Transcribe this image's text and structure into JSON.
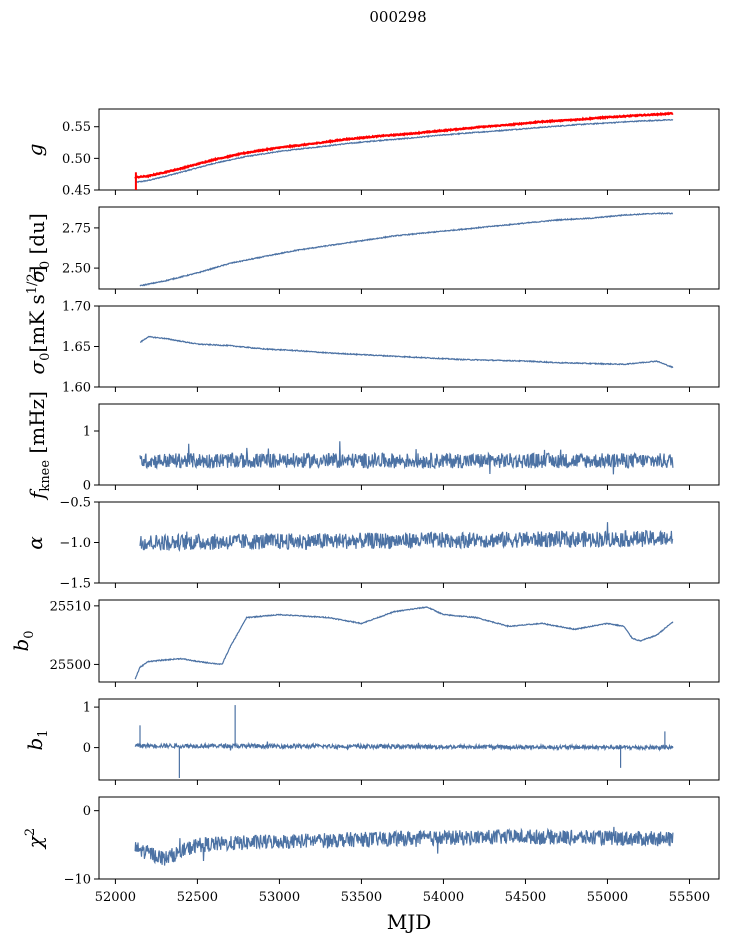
{
  "title": "000298",
  "xlabel": "MJD",
  "xlim": [
    51900,
    55680
  ],
  "xticks": [
    52000,
    52500,
    53000,
    53500,
    54000,
    54500,
    55000,
    55500
  ],
  "colors": {
    "series": "#4c72a4",
    "red": "#ff0000"
  },
  "chart_data": [
    {
      "type": "line",
      "key": "g",
      "ylabel": "g",
      "ylim": [
        0.45,
        0.578
      ],
      "yticks": [
        0.45,
        0.5,
        0.55
      ],
      "ytick_labels": [
        "0.45",
        "0.50",
        "0.55"
      ],
      "x": [
        52120,
        52200,
        52400,
        52600,
        52800,
        53000,
        53200,
        53400,
        53600,
        53800,
        54000,
        54200,
        54400,
        54600,
        54800,
        55000,
        55200,
        55400
      ],
      "series": [
        {
          "values": [
            0.462,
            0.465,
            0.478,
            0.492,
            0.503,
            0.511,
            0.517,
            0.523,
            0.528,
            0.532,
            0.537,
            0.541,
            0.545,
            0.549,
            0.553,
            0.556,
            0.559,
            0.561
          ]
        },
        {
          "values": [
            0.47,
            0.472,
            0.484,
            0.498,
            0.509,
            0.517,
            0.523,
            0.53,
            0.535,
            0.539,
            0.544,
            0.549,
            0.553,
            0.558,
            0.561,
            0.565,
            0.568,
            0.571
          ],
          "color": "red"
        }
      ]
    },
    {
      "type": "line",
      "key": "sigma0_du",
      "ylabel": "σ₀ [du]",
      "ylim": [
        2.37,
        2.88
      ],
      "yticks": [
        2.5,
        2.75
      ],
      "ytick_labels": [
        "2.50",
        "2.75"
      ],
      "x": [
        52150,
        52300,
        52500,
        52700,
        52900,
        53100,
        53300,
        53500,
        53700,
        53900,
        54100,
        54300,
        54500,
        54700,
        54900,
        55100,
        55300,
        55400
      ],
      "series": [
        {
          "values": [
            2.39,
            2.42,
            2.47,
            2.53,
            2.57,
            2.61,
            2.64,
            2.67,
            2.7,
            2.72,
            2.74,
            2.76,
            2.78,
            2.8,
            2.81,
            2.83,
            2.84,
            2.84
          ]
        }
      ]
    },
    {
      "type": "line",
      "key": "sigma0_mk",
      "ylabel": "σ₀[mK s^1/2]",
      "ylim": [
        1.6,
        1.7
      ],
      "yticks": [
        1.6,
        1.65,
        1.7
      ],
      "ytick_labels": [
        "1.60",
        "1.65",
        "1.70"
      ],
      "x": [
        52150,
        52200,
        52300,
        52500,
        52700,
        52900,
        53100,
        53300,
        53500,
        53700,
        53900,
        54100,
        54300,
        54500,
        54700,
        54900,
        55100,
        55300,
        55400
      ],
      "series": [
        {
          "values": [
            1.655,
            1.662,
            1.66,
            1.653,
            1.651,
            1.647,
            1.645,
            1.642,
            1.64,
            1.638,
            1.636,
            1.634,
            1.633,
            1.632,
            1.63,
            1.629,
            1.628,
            1.632,
            1.624
          ]
        }
      ]
    },
    {
      "type": "line",
      "key": "fknee",
      "ylabel": "f_knee [mHz]",
      "ylim": [
        0,
        1.5
      ],
      "yticks": [
        0,
        1
      ],
      "ytick_labels": [
        "0",
        "1"
      ],
      "x": [
        52150,
        55400
      ],
      "series": [
        {
          "values": [
            0.45,
            0.45
          ],
          "noise": 0.14
        }
      ]
    },
    {
      "type": "line",
      "key": "alpha",
      "ylabel": "α",
      "ylim": [
        -1.5,
        -0.5
      ],
      "yticks": [
        -1.5,
        -1.0,
        -0.5
      ],
      "ytick_labels": [
        "−1.5",
        "−1.0",
        "−0.5"
      ],
      "x": [
        52150,
        55400
      ],
      "series": [
        {
          "values": [
            -1.0,
            -0.95
          ],
          "noise": 0.1
        }
      ]
    },
    {
      "type": "line",
      "key": "b0",
      "ylabel": "b₀",
      "ylim": [
        25497,
        25511
      ],
      "yticks": [
        25500,
        25510
      ],
      "ytick_labels": [
        "25500",
        "25510"
      ],
      "x": [
        52120,
        52150,
        52200,
        52400,
        52500,
        52650,
        52700,
        52800,
        53000,
        53300,
        53500,
        53700,
        53900,
        54000,
        54200,
        54400,
        54600,
        54800,
        55000,
        55100,
        55150,
        55200,
        55300,
        55400
      ],
      "series": [
        {
          "values": [
            25497.5,
            25499.5,
            25500.5,
            25501,
            25500.5,
            25500,
            25503,
            25508,
            25508.5,
            25508,
            25507,
            25509,
            25509.8,
            25508.5,
            25508,
            25506.5,
            25507,
            25506,
            25507,
            25506.5,
            25504.5,
            25504,
            25505,
            25507.3
          ]
        }
      ]
    },
    {
      "type": "line",
      "key": "b1",
      "ylabel": "b₁",
      "ylim": [
        -0.8,
        1.2
      ],
      "yticks": [
        0,
        1
      ],
      "ytick_labels": [
        "0",
        "1"
      ],
      "x": [
        52120,
        55400
      ],
      "series": [
        {
          "values": [
            0.05,
            0.0
          ],
          "noise": 0.05
        }
      ]
    },
    {
      "type": "line",
      "key": "chi2",
      "ylabel": "χ²",
      "ylim": [
        -10,
        2
      ],
      "yticks": [
        -10,
        0
      ],
      "ytick_labels": [
        "−10",
        "0"
      ],
      "x": [
        52120,
        52300,
        52500,
        53000,
        53500,
        54000,
        54500,
        55000,
        55400
      ],
      "series": [
        {
          "values": [
            -5.5,
            -7,
            -5,
            -4.5,
            -4.2,
            -4,
            -3.8,
            -4,
            -4.2
          ],
          "noise": 1.1
        }
      ]
    }
  ]
}
